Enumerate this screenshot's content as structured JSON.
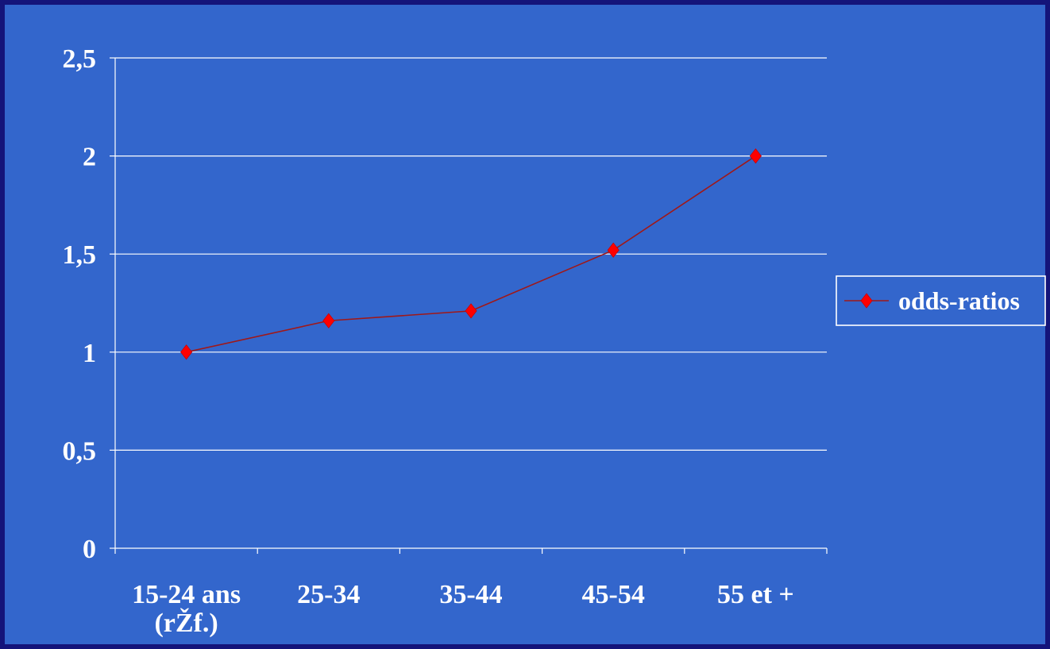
{
  "chart_data": {
    "type": "line",
    "categories": [
      "15-24 ans (rŽf.)",
      "25-34",
      "35-44",
      "45-54",
      "55 et +"
    ],
    "category_lines": [
      [
        "15-24 ans",
        "(rŽf.)"
      ],
      [
        "25-34"
      ],
      [
        "35-44"
      ],
      [
        "45-54"
      ],
      [
        "55 et +"
      ]
    ],
    "series": [
      {
        "name": "odds-ratios",
        "values": [
          1.0,
          1.16,
          1.21,
          1.52,
          2.0
        ]
      }
    ],
    "y_ticks": [
      "0",
      "0,5",
      "1",
      "1,5",
      "2",
      "2,5"
    ],
    "ylim": [
      0,
      2.5
    ],
    "grid": true,
    "legend_position": "right",
    "colors": {
      "background": "#3366cc",
      "border": "#14147a",
      "line": "#a01818",
      "marker": "#ff0000",
      "gridline": "#ffffff",
      "text": "#ffffff"
    }
  }
}
